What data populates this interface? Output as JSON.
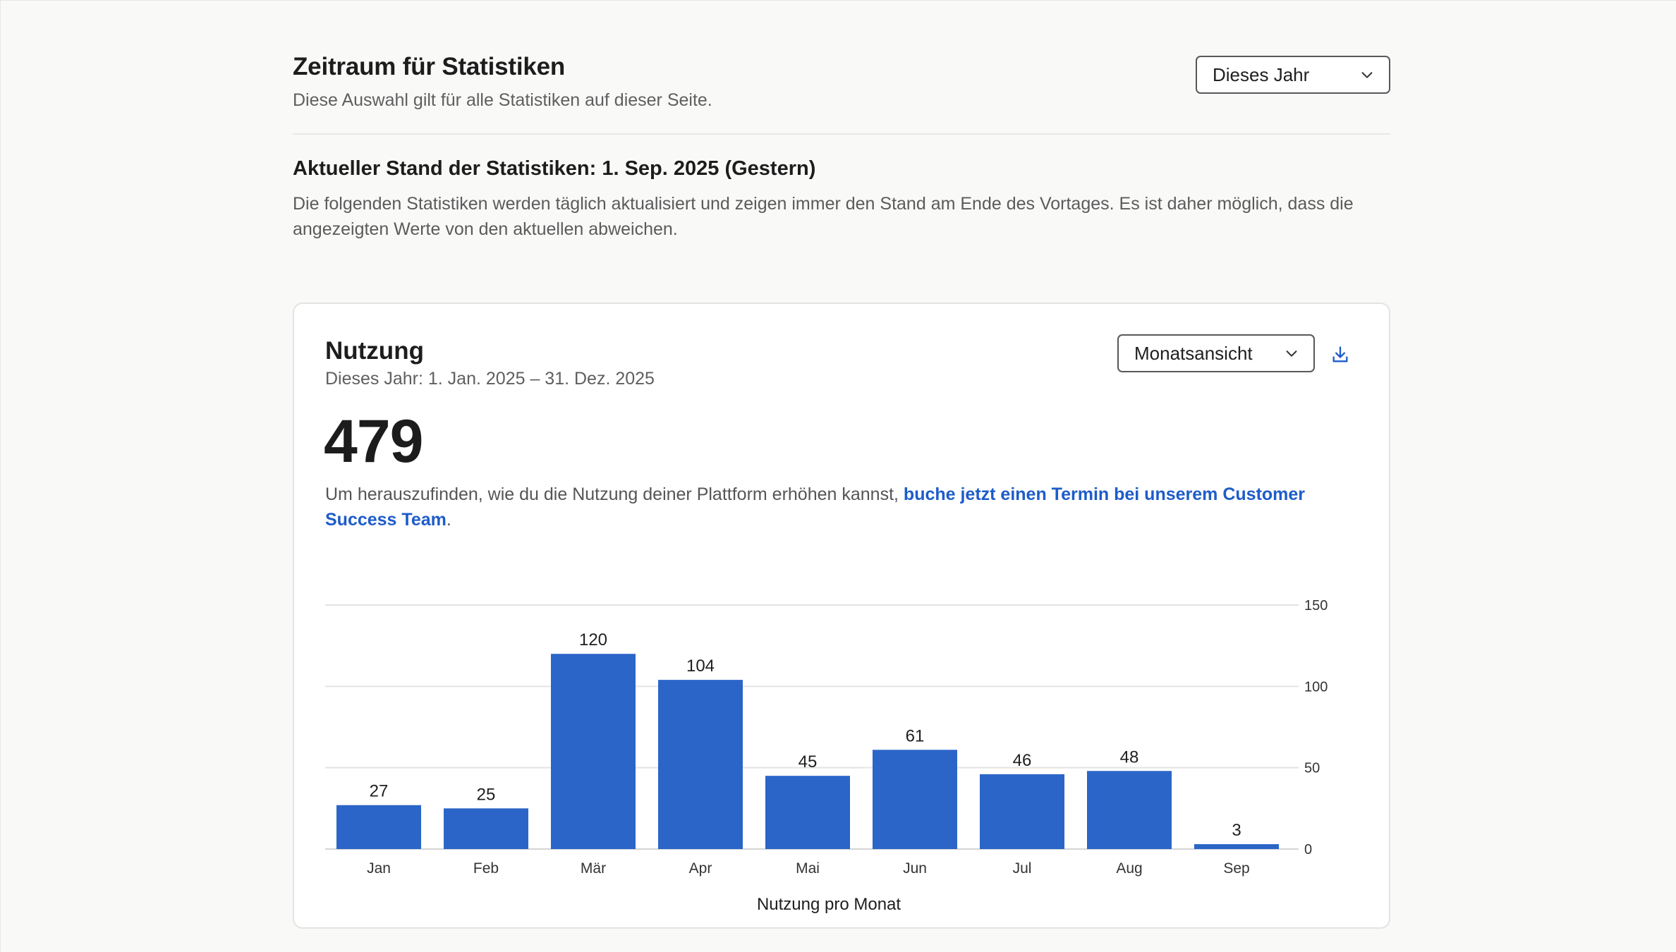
{
  "period": {
    "title": "Zeitraum für Statistiken",
    "subtitle": "Diese Auswahl gilt für alle Statistiken auf dieser Seite.",
    "select_value": "Dieses Jahr"
  },
  "status": {
    "title": "Aktueller Stand der Statistiken: 1. Sep. 2025 (Gestern)",
    "text": "Die folgenden Statistiken werden täglich aktualisiert und zeigen immer den Stand am Ende des Vortages. Es ist daher möglich, dass die angezeigten Werte von den aktuellen abweichen."
  },
  "usage_card": {
    "title": "Nutzung",
    "range": "Dieses Jahr: 1. Jan. 2025 – 31. Dez. 2025",
    "view_select_value": "Monatsansicht",
    "total": "479",
    "hint_text": "Um herauszufinden, wie du die Nutzung deiner Plattform erhöhen kannst, ",
    "hint_link": "buche jetzt einen Termin bei unserem Customer Success Team",
    "hint_end": "."
  },
  "icons": {
    "chevron": "chevron-down-icon",
    "download": "download-icon"
  },
  "colors": {
    "accent": "#2b65c8",
    "link": "#1e5cc9"
  },
  "chart_data": {
    "type": "bar",
    "categories": [
      "Jan",
      "Feb",
      "Mär",
      "Apr",
      "Mai",
      "Jun",
      "Jul",
      "Aug",
      "Sep"
    ],
    "values": [
      27,
      25,
      120,
      104,
      45,
      61,
      46,
      48,
      3
    ],
    "xlabel": "Nutzung pro Monat",
    "ylabel": "",
    "ylim": [
      0,
      150
    ],
    "yticks": [
      0,
      50,
      100,
      150
    ],
    "y_axis_side": "right",
    "grid": true,
    "data_labels": true
  }
}
